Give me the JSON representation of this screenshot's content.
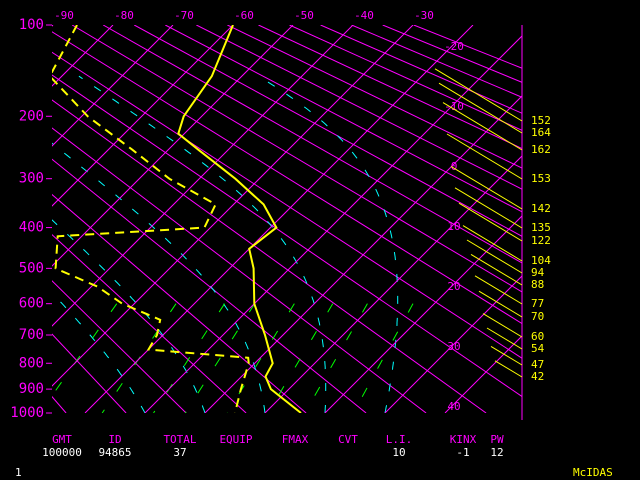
{
  "chart_data": {
    "type": "skew-t",
    "ylim": [
      100,
      1000
    ],
    "yticks": [
      100,
      200,
      300,
      400,
      500,
      600,
      700,
      800,
      900,
      1000
    ],
    "xticks": [
      -90,
      -80,
      -70,
      -60,
      -50,
      -40,
      -30,
      -20,
      -10,
      0,
      10,
      20,
      30,
      40
    ],
    "axis_color": "#ff00ff",
    "series": [
      {
        "color": "#ffff00",
        "dashed": false,
        "pressure": [
          100,
          150,
          200,
          225,
          250,
          300,
          350,
          400,
          450,
          500,
          600,
          700,
          800,
          850,
          900,
          1000
        ],
        "values": [
          -60,
          -55,
          -53,
          -51,
          -45,
          -34,
          -25,
          -19,
          -20,
          -16,
          -10,
          -3,
          3,
          4,
          7,
          16
        ]
      },
      {
        "color": "#ffff00",
        "dashed": true,
        "pressure": [
          100,
          150,
          200,
          250,
          300,
          350,
          400,
          420,
          500,
          550,
          600,
          650,
          700,
          750,
          780,
          800,
          900,
          1000
        ],
        "values": [
          -86,
          -82,
          -69,
          -56,
          -45,
          -33,
          -31,
          -54,
          -49,
          -39,
          -32,
          -23,
          -21,
          -20,
          -2,
          -1,
          2,
          5
        ]
      }
    ],
    "side_values": [
      152,
      164,
      162,
      153,
      142,
      135,
      122,
      104,
      94,
      88,
      77,
      70,
      60,
      54,
      47,
      42
    ],
    "footer": {
      "headers": [
        "GMT",
        "ID",
        "TOTAL",
        "EQUIP",
        "FMAX",
        "CVT",
        "L.I.",
        "KINX",
        "PW"
      ],
      "values": [
        100000,
        94865,
        37,
        null,
        null,
        null,
        10,
        -1,
        12
      ]
    },
    "status_left": "1",
    "status_right": "McIDAS"
  }
}
